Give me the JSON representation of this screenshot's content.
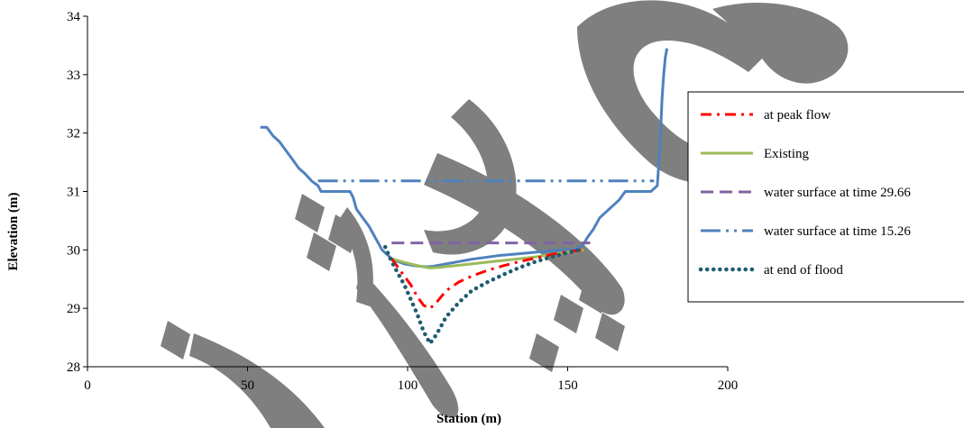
{
  "chart_data": {
    "type": "line",
    "xlabel": "Station (m)",
    "ylabel": "Elevation (m)",
    "xlim": [
      0,
      200
    ],
    "ylim": [
      28,
      34
    ],
    "xticks": [
      0,
      50,
      100,
      150,
      200
    ],
    "yticks": [
      28,
      29,
      30,
      31,
      32,
      33,
      34
    ],
    "grid": false,
    "legend_position": "right",
    "terrain": {
      "color": "#4f81bd",
      "x": [
        54,
        56,
        58,
        60,
        62,
        64,
        66,
        68,
        70,
        72,
        73,
        74,
        76,
        78,
        80,
        82,
        83,
        84,
        86,
        88,
        90,
        91,
        92,
        93,
        94,
        95,
        96,
        97,
        98,
        99,
        100,
        101,
        102,
        104,
        106,
        108,
        110,
        112,
        114,
        116,
        118,
        120,
        124,
        128,
        132,
        136,
        140,
        144,
        148,
        150,
        152,
        154,
        155,
        156,
        158,
        160,
        162,
        164,
        166,
        168,
        170,
        172,
        174,
        176,
        177,
        178,
        178.5,
        179,
        179.5,
        180,
        180.5,
        181
      ],
      "y": [
        32.1,
        32.1,
        31.95,
        31.85,
        31.7,
        31.55,
        31.4,
        31.3,
        31.18,
        31.1,
        31.0,
        31.0,
        31.0,
        31.0,
        31.0,
        31.0,
        30.9,
        30.7,
        30.55,
        30.4,
        30.2,
        30.1,
        30.0,
        29.95,
        29.9,
        29.85,
        29.82,
        29.8,
        29.78,
        29.76,
        29.75,
        29.74,
        29.73,
        29.72,
        29.71,
        29.72,
        29.74,
        29.76,
        29.78,
        29.8,
        29.82,
        29.84,
        29.87,
        29.9,
        29.92,
        29.94,
        29.96,
        29.98,
        30.0,
        30.0,
        30.0,
        30.05,
        30.1,
        30.2,
        30.35,
        30.55,
        30.65,
        30.75,
        30.85,
        31.0,
        31.0,
        31.0,
        31.0,
        31.0,
        31.05,
        31.1,
        31.5,
        32.0,
        32.6,
        33.0,
        33.3,
        33.45
      ]
    },
    "series": [
      {
        "name": "at peak flow",
        "color": "#ff0000",
        "style": "dash-dot",
        "x": [
          95,
          97,
          99,
          101,
          103,
          105,
          107,
          109,
          112,
          116,
          120,
          125,
          130,
          135,
          140,
          145,
          150,
          155
        ],
        "y": [
          29.85,
          29.7,
          29.55,
          29.4,
          29.2,
          29.05,
          29.0,
          29.1,
          29.3,
          29.45,
          29.55,
          29.65,
          29.73,
          29.8,
          29.86,
          29.92,
          29.97,
          30.0
        ]
      },
      {
        "name": "Existing",
        "color": "#9bbb59",
        "style": "solid",
        "x": [
          95,
          98,
          101,
          104,
          107,
          110,
          115,
          120,
          125,
          130,
          135,
          140,
          145,
          150,
          155
        ],
        "y": [
          29.85,
          29.8,
          29.76,
          29.72,
          29.69,
          29.7,
          29.73,
          29.76,
          29.79,
          29.82,
          29.85,
          29.88,
          29.92,
          29.96,
          30.0
        ]
      },
      {
        "name": "water surface at time 29.66",
        "color": "#8064a2",
        "style": "dashed",
        "x": [
          95,
          157
        ],
        "y": [
          30.12,
          30.12
        ]
      },
      {
        "name": "water surface at time 15.26",
        "color": "#4f81bd",
        "style": "long-dash-dot-dot",
        "x": [
          72,
          177
        ],
        "y": [
          31.18,
          31.18
        ]
      },
      {
        "name": "at end of flood",
        "color": "#1f5c70",
        "style": "dotted",
        "x": [
          93,
          95,
          97,
          99,
          101,
          103,
          105,
          107,
          109,
          112,
          116,
          120,
          125,
          130,
          135,
          140,
          145,
          150,
          155
        ],
        "y": [
          30.05,
          29.8,
          29.6,
          29.4,
          29.15,
          28.9,
          28.6,
          28.4,
          28.55,
          28.85,
          29.1,
          29.3,
          29.45,
          29.58,
          29.7,
          29.8,
          29.88,
          29.95,
          30.02
        ]
      }
    ]
  }
}
